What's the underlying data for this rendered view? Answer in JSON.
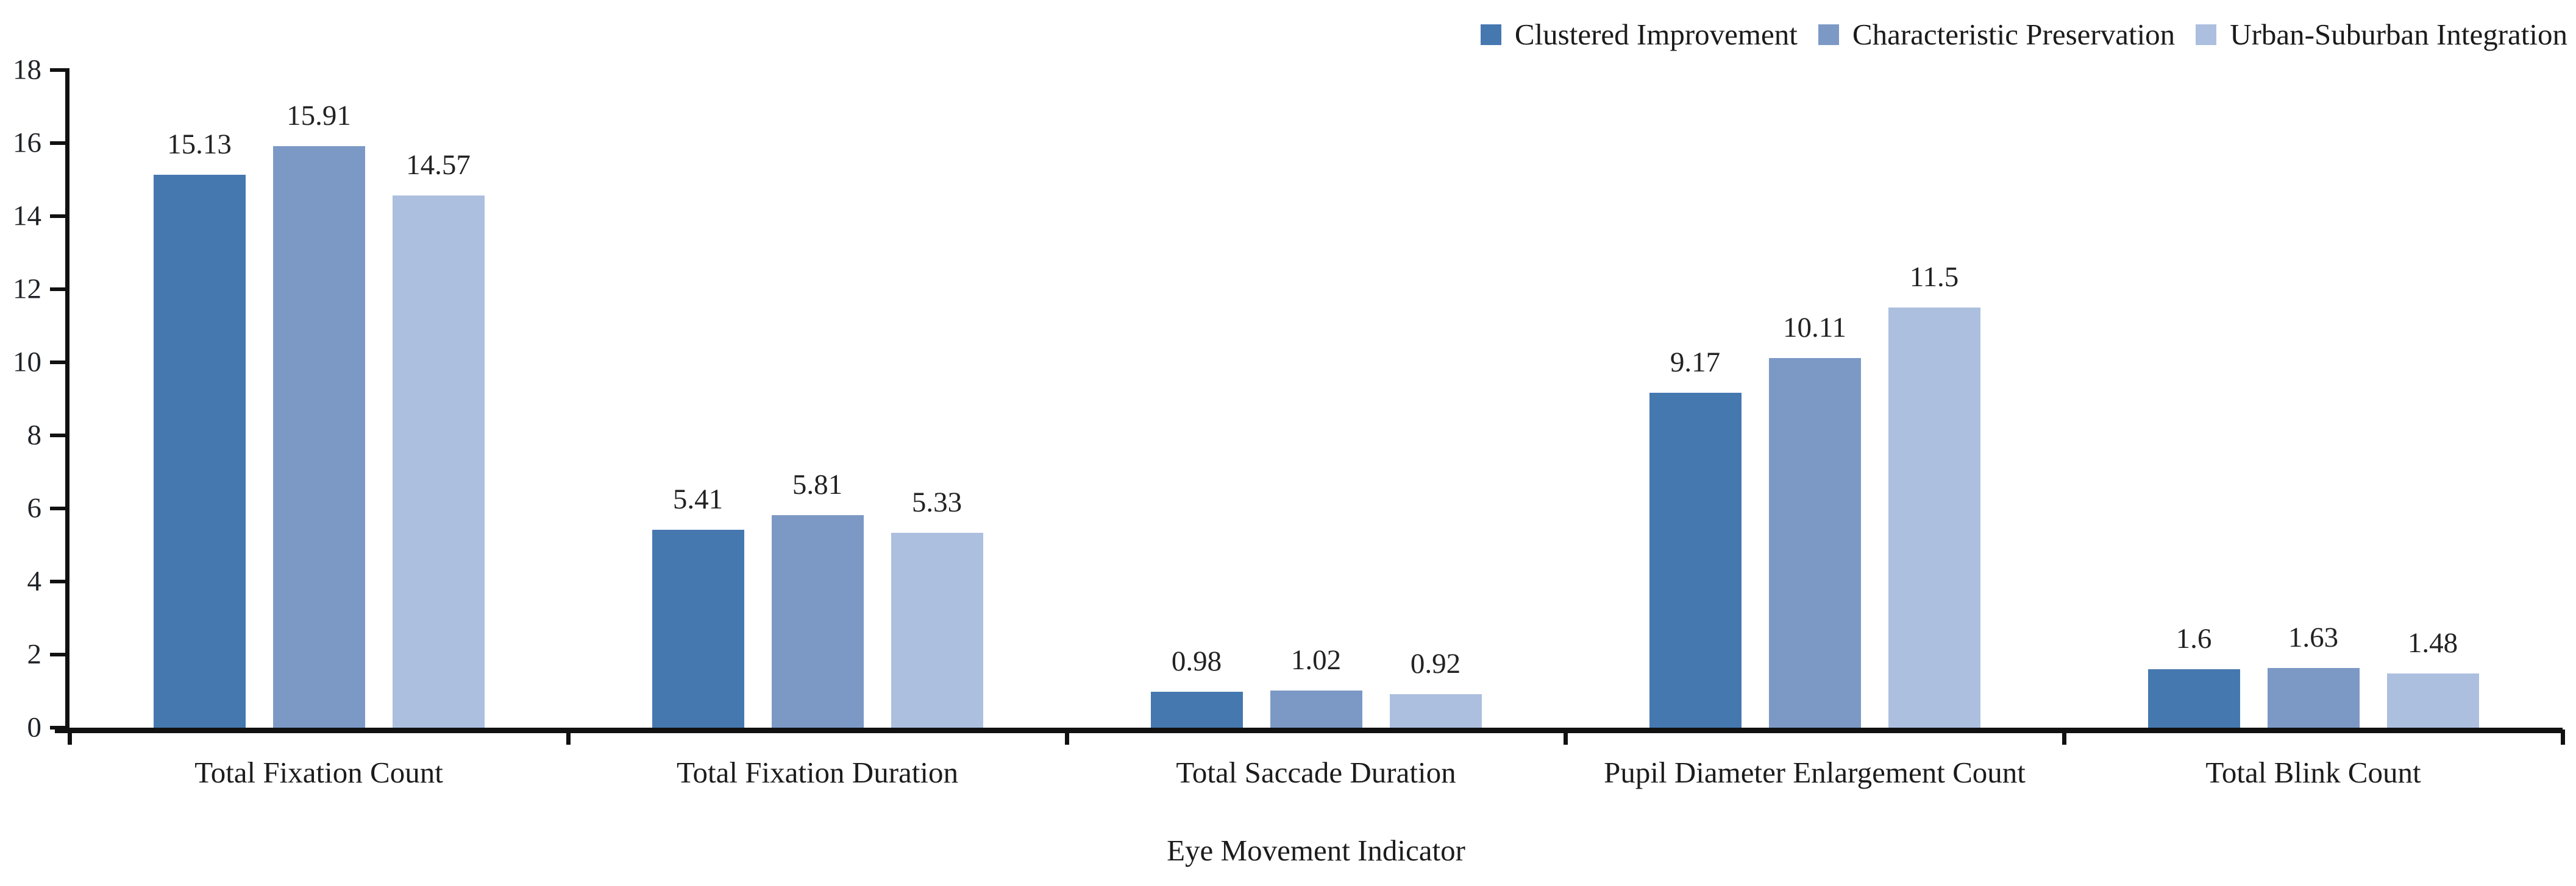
{
  "chart_data": {
    "type": "bar",
    "title": "",
    "xlabel": "Eye Movement Indicator",
    "ylabel": "",
    "ylim": [
      0,
      18
    ],
    "yticks": [
      0,
      2,
      4,
      6,
      8,
      10,
      12,
      14,
      16,
      18
    ],
    "grid": false,
    "legend_position": "top-right",
    "categories": [
      "Total Fixation Count",
      "Total Fixation Duration",
      "Total Saccade Duration",
      "Pupil Diameter Enlargement Count",
      "Total Blink Count"
    ],
    "series": [
      {
        "name": "Clustered Improvement",
        "color": "#4678b0",
        "values": [
          15.13,
          5.41,
          0.98,
          9.17,
          1.6
        ]
      },
      {
        "name": "Characteristic Preservation",
        "color": "#7c99c6",
        "values": [
          15.91,
          5.81,
          1.02,
          10.11,
          1.63
        ]
      },
      {
        "name": "Urban-Suburban Integration",
        "color": "#acbfdf",
        "values": [
          14.57,
          5.33,
          0.92,
          11.5,
          1.48
        ]
      }
    ]
  },
  "colors": {
    "axis": "#111111",
    "text": "#1c1c1c",
    "background": "#ffffff"
  }
}
